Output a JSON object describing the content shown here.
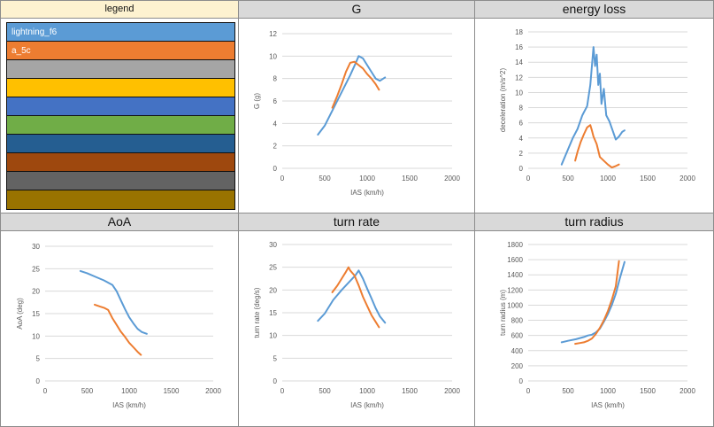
{
  "legend": {
    "title": "legend",
    "entries": [
      {
        "label": "lightning_f6",
        "color": "#5b9bd5"
      },
      {
        "label": "a_5c",
        "color": "#ed7d31"
      },
      {
        "label": "",
        "color": "#a5a5a5"
      },
      {
        "label": "",
        "color": "#ffc000"
      },
      {
        "label": "",
        "color": "#4472c4"
      },
      {
        "label": "",
        "color": "#70ad47"
      },
      {
        "label": "",
        "color": "#255e91"
      },
      {
        "label": "",
        "color": "#9e480e"
      },
      {
        "label": "",
        "color": "#636363"
      },
      {
        "label": "",
        "color": "#997300"
      }
    ]
  },
  "chart_data": [
    {
      "id": "g",
      "type": "line",
      "title": "G",
      "xlabel": "IAS (km/h)",
      "ylabel": "G (g)",
      "xlim": [
        0,
        2000
      ],
      "ylim": [
        0,
        12
      ],
      "xticks": [
        0,
        500,
        1000,
        1500,
        2000
      ],
      "yticks": [
        0,
        2,
        4,
        6,
        8,
        10,
        12
      ],
      "grid": "horizontal",
      "series": [
        {
          "name": "lightning_f6",
          "color": "#5b9bd5",
          "x": [
            420,
            500,
            600,
            700,
            800,
            860,
            900,
            950,
            1000,
            1050,
            1100,
            1150,
            1210
          ],
          "y": [
            3.0,
            3.8,
            5.3,
            6.8,
            8.3,
            9.3,
            10.0,
            9.8,
            9.2,
            8.6,
            8.0,
            7.8,
            8.1
          ]
        },
        {
          "name": "a_5c",
          "color": "#ed7d31",
          "x": [
            590,
            650,
            700,
            750,
            800,
            850,
            900,
            950,
            1000,
            1050,
            1100,
            1140
          ],
          "y": [
            5.4,
            6.5,
            7.5,
            8.6,
            9.4,
            9.5,
            9.2,
            8.9,
            8.4,
            8.0,
            7.5,
            7.0
          ]
        }
      ]
    },
    {
      "id": "energy",
      "type": "line",
      "title": "energy loss",
      "xlabel": "",
      "ylabel": "deceleration (m/s^2)",
      "xlim": [
        0,
        2000
      ],
      "ylim": [
        0,
        18
      ],
      "xticks": [
        0,
        500,
        1000,
        1500,
        2000
      ],
      "yticks": [
        0,
        2,
        4,
        6,
        8,
        10,
        12,
        14,
        16,
        18
      ],
      "grid": "horizontal",
      "series": [
        {
          "name": "lightning_f6",
          "color": "#5b9bd5",
          "x": [
            420,
            500,
            560,
            620,
            680,
            740,
            780,
            820,
            840,
            860,
            880,
            900,
            920,
            950,
            980,
            1020,
            1060,
            1100,
            1140,
            1180,
            1210
          ],
          "y": [
            0.5,
            2.5,
            4.0,
            5.2,
            7.0,
            8.2,
            11.0,
            16.0,
            13.5,
            15.0,
            11.0,
            12.5,
            8.5,
            10.5,
            7.0,
            6.2,
            5.0,
            3.8,
            4.2,
            4.8,
            5.0
          ]
        },
        {
          "name": "a_5c",
          "color": "#ed7d31",
          "x": [
            590,
            620,
            660,
            700,
            740,
            780,
            800,
            820,
            860,
            900,
            960,
            1000,
            1050,
            1100,
            1140
          ],
          "y": [
            1.0,
            2.2,
            3.5,
            4.5,
            5.4,
            5.7,
            5.0,
            4.2,
            3.2,
            1.5,
            0.9,
            0.5,
            0.1,
            0.3,
            0.5
          ]
        }
      ]
    },
    {
      "id": "aoa",
      "type": "line",
      "title": "AoA",
      "xlabel": "IAS (km/h)",
      "ylabel": "AoA (deg)",
      "xlim": [
        0,
        2000
      ],
      "ylim": [
        0,
        30
      ],
      "xticks": [
        0,
        500,
        1000,
        1500,
        2000
      ],
      "yticks": [
        0,
        5,
        10,
        15,
        20,
        25,
        30
      ],
      "grid": "horizontal",
      "series": [
        {
          "name": "lightning_f6",
          "color": "#5b9bd5",
          "x": [
            420,
            500,
            600,
            700,
            800,
            850,
            900,
            950,
            1000,
            1050,
            1100,
            1150,
            1210
          ],
          "y": [
            24.5,
            24.0,
            23.2,
            22.4,
            21.4,
            20.0,
            18.0,
            16.0,
            14.2,
            12.8,
            11.6,
            10.9,
            10.5
          ]
        },
        {
          "name": "a_5c",
          "color": "#ed7d31",
          "x": [
            590,
            650,
            700,
            750,
            800,
            850,
            900,
            950,
            1000,
            1050,
            1100,
            1140
          ],
          "y": [
            17.0,
            16.6,
            16.3,
            15.8,
            14.0,
            12.5,
            11.0,
            9.8,
            8.5,
            7.5,
            6.5,
            5.8
          ]
        }
      ]
    },
    {
      "id": "turnrate",
      "type": "line",
      "title": "turn rate",
      "xlabel": "IAS (km/h)",
      "ylabel": "turn rate (deg/s)",
      "xlim": [
        0,
        2000
      ],
      "ylim": [
        0,
        30
      ],
      "xticks": [
        0,
        500,
        1000,
        1500,
        2000
      ],
      "yticks": [
        0,
        5,
        10,
        15,
        20,
        25,
        30
      ],
      "grid": "horizontal",
      "series": [
        {
          "name": "lightning_f6",
          "color": "#5b9bd5",
          "x": [
            420,
            500,
            600,
            700,
            800,
            860,
            900,
            950,
            1000,
            1050,
            1100,
            1150,
            1210
          ],
          "y": [
            13.2,
            14.8,
            17.8,
            20.0,
            22.0,
            23.2,
            24.3,
            22.5,
            20.3,
            18.2,
            16.0,
            14.2,
            12.8
          ]
        },
        {
          "name": "a_5c",
          "color": "#ed7d31",
          "x": [
            590,
            650,
            700,
            750,
            780,
            800,
            850,
            900,
            950,
            1000,
            1050,
            1100,
            1140
          ],
          "y": [
            19.5,
            21.0,
            22.5,
            24.0,
            25.0,
            24.3,
            23.2,
            21.0,
            18.5,
            16.5,
            14.5,
            13.0,
            11.8
          ]
        }
      ]
    },
    {
      "id": "radius",
      "type": "line",
      "title": "turn radius",
      "xlabel": "IAS (km/h)",
      "ylabel": "turn radius (m)",
      "xlim": [
        0,
        2000
      ],
      "ylim": [
        0,
        1800
      ],
      "xticks": [
        0,
        500,
        1000,
        1500,
        2000
      ],
      "yticks": [
        0,
        200,
        400,
        600,
        800,
        1000,
        1200,
        1400,
        1600,
        1800
      ],
      "grid": "horizontal",
      "series": [
        {
          "name": "lightning_f6",
          "color": "#5b9bd5",
          "x": [
            420,
            500,
            600,
            700,
            750,
            800,
            850,
            900,
            950,
            1000,
            1050,
            1100,
            1150,
            1210
          ],
          "y": [
            510,
            530,
            550,
            580,
            600,
            610,
            640,
            690,
            780,
            880,
            1000,
            1150,
            1350,
            1570
          ]
        },
        {
          "name": "a_5c",
          "color": "#ed7d31",
          "x": [
            590,
            650,
            700,
            750,
            800,
            850,
            900,
            950,
            1000,
            1050,
            1100,
            1140
          ],
          "y": [
            490,
            500,
            510,
            530,
            560,
            620,
            700,
            800,
            920,
            1070,
            1250,
            1580
          ]
        }
      ]
    }
  ]
}
